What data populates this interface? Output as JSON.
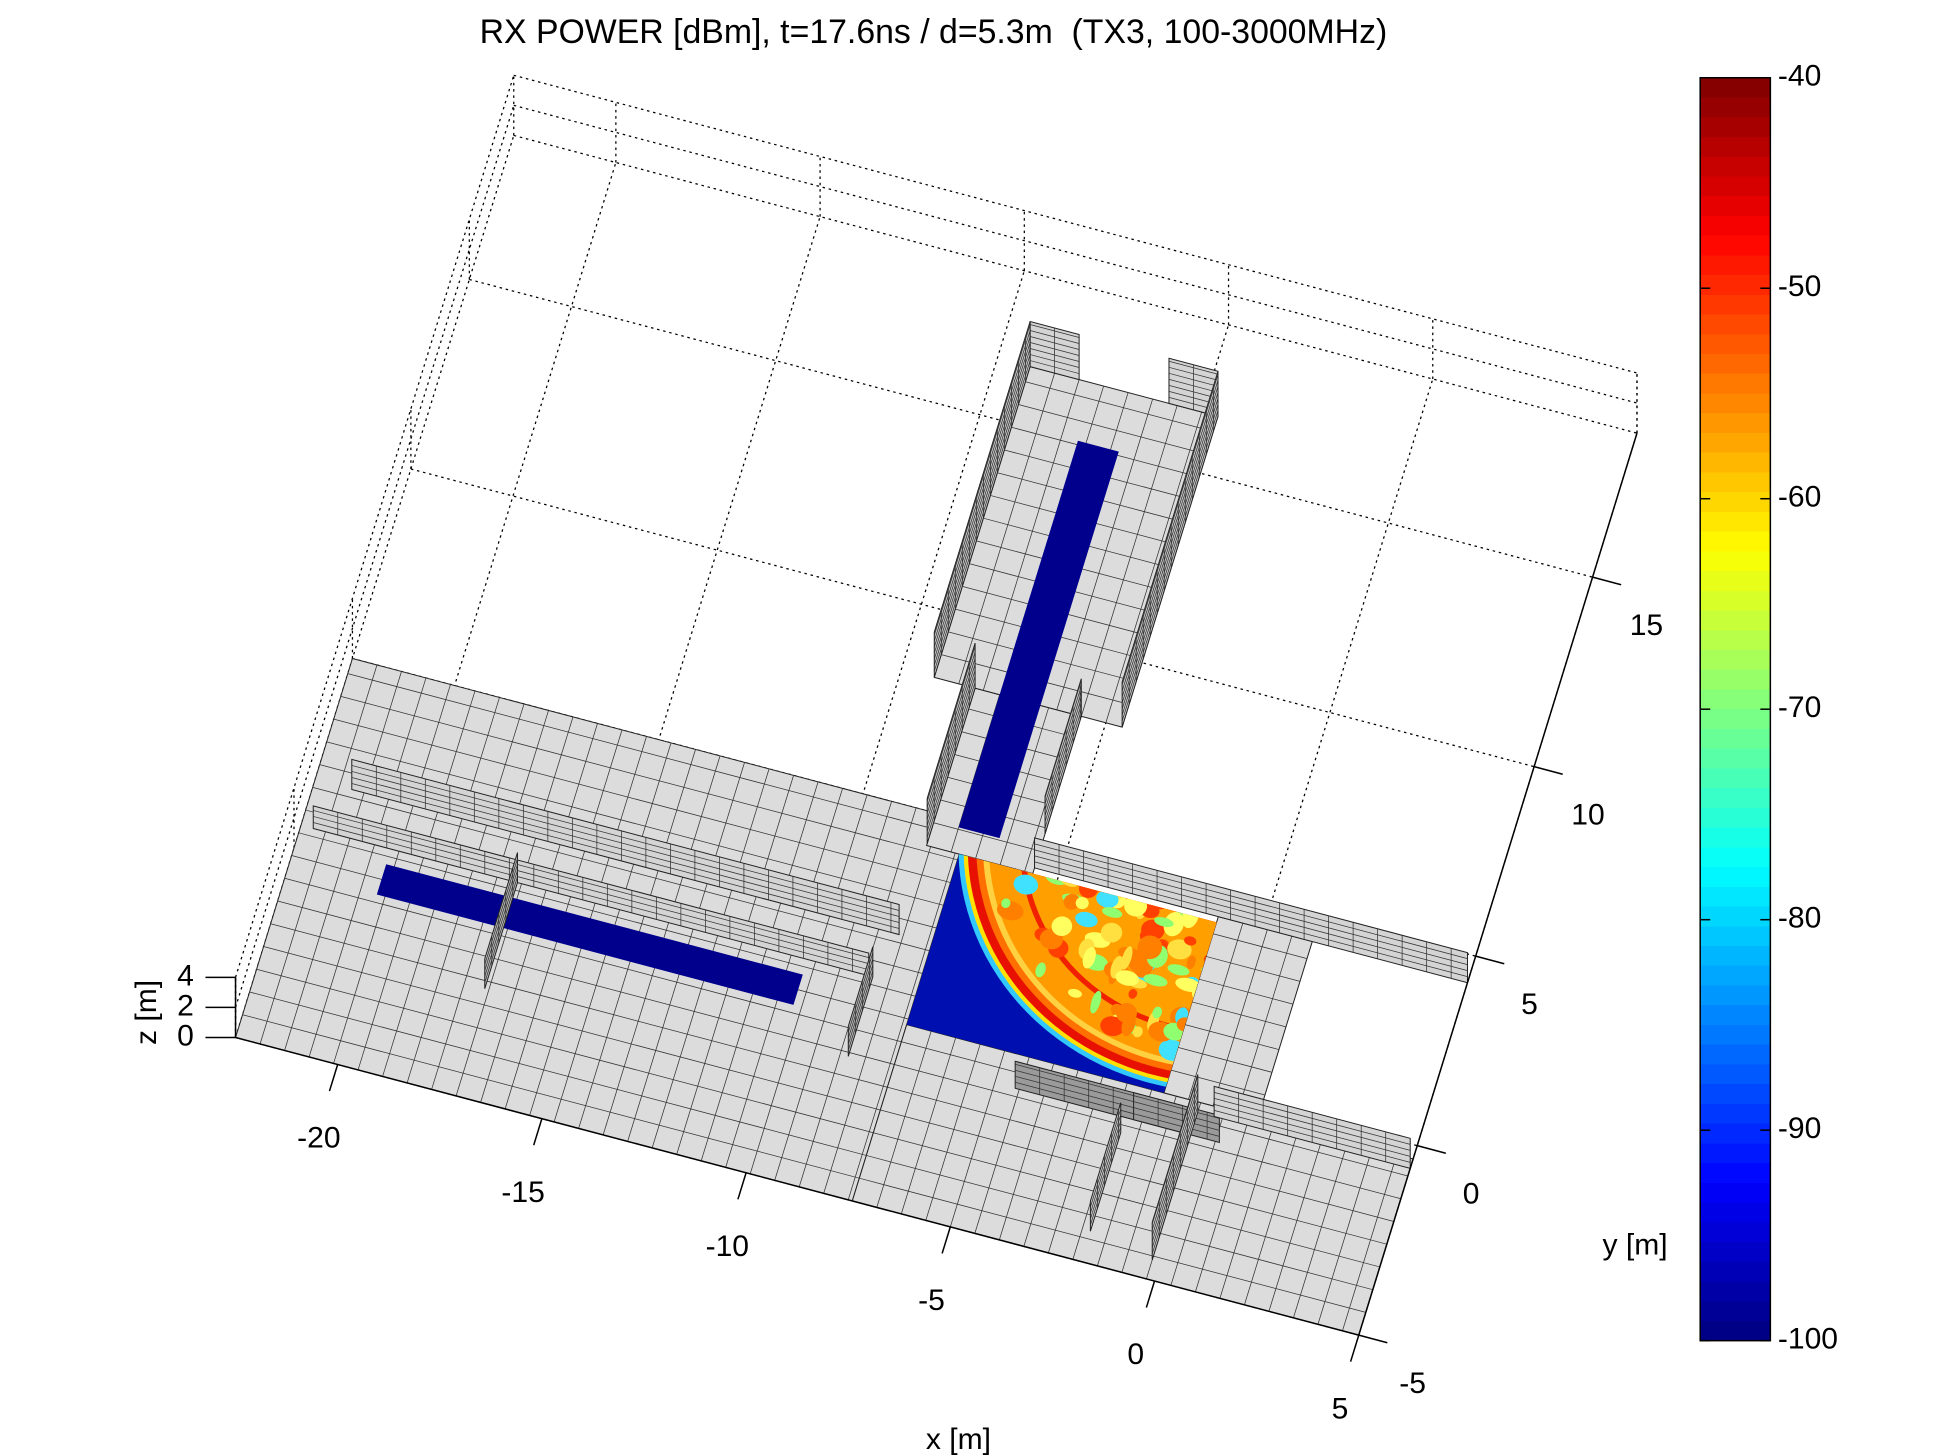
{
  "chart_data": {
    "type": "surface3d",
    "title": "RX POWER [dBm], t=17.6ns / d=5.3m  (TX3, 100-3000MHz)",
    "xlabel": "x [m]",
    "ylabel": "y [m]",
    "zlabel": "z [m]",
    "xlim": [
      -22.5,
      5
    ],
    "ylim": [
      -5,
      18.8
    ],
    "zlim": [
      0,
      4
    ],
    "xticks": [
      -20,
      -15,
      -10,
      -5,
      0,
      5
    ],
    "yticks": [
      -5,
      0,
      5,
      10,
      15
    ],
    "zticks": [
      0,
      2,
      4
    ],
    "grid": true,
    "colorbar": {
      "clim": [
        -100,
        -40
      ],
      "ticks": [
        -100,
        -90,
        -80,
        -70,
        -60,
        -50,
        -40
      ],
      "colormap": "jet"
    }
  }
}
